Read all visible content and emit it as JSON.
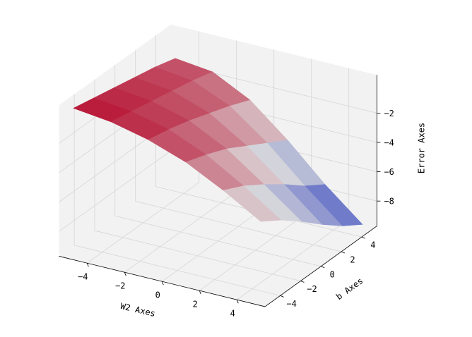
{
  "chart_data": {
    "type": "surface",
    "x_label": "W2 Axes",
    "y_label": "b Axes",
    "z_label": "Error Axes",
    "x": [
      -5,
      -3,
      -1,
      1,
      3,
      5
    ],
    "y": [
      -5,
      -3,
      -1,
      1,
      3,
      5
    ],
    "z": [
      [
        0.3,
        0.0,
        -0.3,
        -0.6,
        -0.9,
        -1.3
      ],
      [
        0.0,
        -0.3,
        -0.6,
        -0.9,
        -1.2,
        -1.6
      ],
      [
        -0.6,
        -0.9,
        -1.3,
        -1.8,
        -2.3,
        -2.9
      ],
      [
        -1.5,
        -2.0,
        -2.6,
        -3.4,
        -4.2,
        -5.0
      ],
      [
        -2.8,
        -3.5,
        -4.4,
        -5.4,
        -6.5,
        -7.4
      ],
      [
        -4.3,
        -5.2,
        -6.3,
        -7.5,
        -8.6,
        -9.5
      ]
    ],
    "colormap": [
      "#3b4cc0",
      "#dddddd",
      "#b40426"
    ],
    "xlim": [
      -5.5,
      5.5
    ],
    "ylim": [
      -5.5,
      5.5
    ],
    "zlim": [
      -9.7,
      0.6
    ],
    "xticks": [
      {
        "value": -4,
        "label": "−4"
      },
      {
        "value": -2,
        "label": "−2"
      },
      0,
      2,
      4
    ],
    "yticks": [
      {
        "value": -4,
        "label": "−4"
      },
      {
        "value": -2,
        "label": "−2"
      },
      0,
      2,
      4
    ],
    "zticks": [
      {
        "value": -2,
        "label": "−2"
      },
      {
        "value": -4,
        "label": "−4"
      },
      {
        "value": -6,
        "label": "−6"
      },
      {
        "value": -8,
        "label": "−8"
      }
    ],
    "grid": true
  }
}
